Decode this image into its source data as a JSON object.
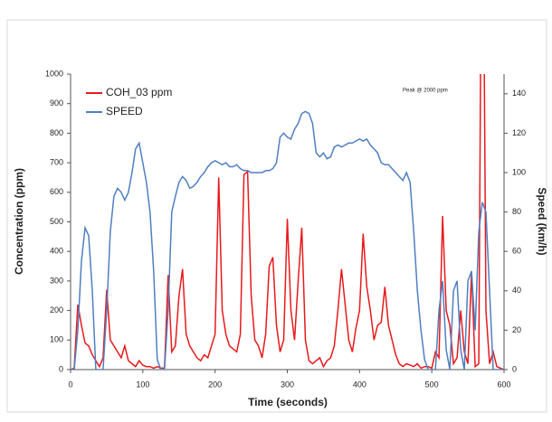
{
  "chart_data": {
    "type": "line",
    "x_label": "Time (seconds)",
    "y_label": "Concentration (ppm)",
    "y2_label": "Speed (km/h)",
    "annotation": "Peak @ 2000 ppm",
    "x": [
      0,
      5,
      10,
      15,
      20,
      25,
      30,
      35,
      40,
      45,
      50,
      55,
      60,
      65,
      70,
      75,
      80,
      85,
      90,
      95,
      100,
      105,
      110,
      115,
      120,
      125,
      130,
      135,
      140,
      145,
      150,
      155,
      160,
      165,
      170,
      175,
      180,
      185,
      190,
      195,
      200,
      205,
      210,
      215,
      220,
      225,
      230,
      235,
      240,
      245,
      250,
      255,
      260,
      265,
      270,
      275,
      280,
      285,
      290,
      295,
      300,
      305,
      310,
      315,
      320,
      325,
      330,
      335,
      340,
      345,
      350,
      355,
      360,
      365,
      370,
      375,
      380,
      385,
      390,
      395,
      400,
      405,
      410,
      415,
      420,
      425,
      430,
      435,
      440,
      445,
      450,
      455,
      460,
      465,
      470,
      475,
      480,
      485,
      490,
      495,
      500,
      505,
      510,
      515,
      520,
      525,
      530,
      535,
      540,
      545,
      550,
      555,
      560,
      565,
      570,
      575,
      580,
      585,
      590,
      595,
      600
    ],
    "series": [
      {
        "name": "COH_03 ppm",
        "color": "#e8191c",
        "values": [
          0,
          5,
          220,
          150,
          90,
          80,
          50,
          30,
          10,
          40,
          270,
          100,
          80,
          60,
          40,
          80,
          30,
          20,
          10,
          30,
          15,
          10,
          10,
          5,
          10,
          5,
          5,
          320,
          60,
          80,
          250,
          340,
          120,
          80,
          60,
          40,
          30,
          50,
          40,
          80,
          120,
          650,
          200,
          120,
          80,
          70,
          60,
          120,
          660,
          670,
          250,
          100,
          80,
          40,
          120,
          350,
          380,
          150,
          60,
          100,
          510,
          200,
          100,
          300,
          480,
          100,
          30,
          20,
          30,
          40,
          10,
          30,
          40,
          80,
          200,
          340,
          220,
          100,
          60,
          140,
          200,
          460,
          280,
          200,
          100,
          150,
          160,
          280,
          150,
          100,
          50,
          20,
          10,
          20,
          15,
          10,
          20,
          5,
          10,
          10,
          5,
          60,
          40,
          520,
          200,
          150,
          20,
          40,
          200,
          60,
          20,
          330,
          10,
          20,
          2000,
          200,
          20,
          60,
          10,
          5,
          0
        ]
      },
      {
        "name": "SPEED",
        "color": "#4f7fc0",
        "axis": "y2",
        "values": [
          0,
          0,
          20,
          55,
          72,
          68,
          40,
          0,
          0,
          0,
          30,
          70,
          88,
          92,
          90,
          86,
          90,
          100,
          112,
          115,
          105,
          95,
          80,
          50,
          5,
          0,
          0,
          30,
          80,
          88,
          95,
          98,
          96,
          92,
          93,
          95,
          98,
          100,
          103,
          105,
          106,
          105,
          104,
          105,
          103,
          103,
          104,
          102,
          101,
          101,
          100,
          100,
          100,
          100,
          101,
          101,
          102,
          105,
          118,
          120,
          118,
          117,
          122,
          125,
          130,
          131,
          130,
          125,
          110,
          108,
          110,
          107,
          108,
          113,
          114,
          113,
          114,
          115,
          115,
          116,
          117,
          116,
          117,
          114,
          112,
          110,
          105,
          104,
          104,
          102,
          100,
          98,
          96,
          100,
          95,
          70,
          40,
          20,
          5,
          0,
          0,
          0,
          30,
          45,
          10,
          0,
          40,
          45,
          10,
          0,
          45,
          50,
          20,
          70,
          85,
          80,
          40,
          0,
          0,
          0,
          0
        ]
      }
    ],
    "xlim": [
      0,
      600
    ],
    "xticks": [
      0,
      100,
      200,
      300,
      400,
      500,
      600
    ],
    "ylim": [
      0,
      1000
    ],
    "yticks": [
      0,
      100,
      200,
      300,
      400,
      500,
      600,
      700,
      800,
      900,
      1000
    ],
    "y2lim": [
      0,
      150
    ],
    "y2ticks": [
      0,
      20,
      40,
      60,
      80,
      100,
      120,
      140
    ],
    "legend": "top-left"
  }
}
